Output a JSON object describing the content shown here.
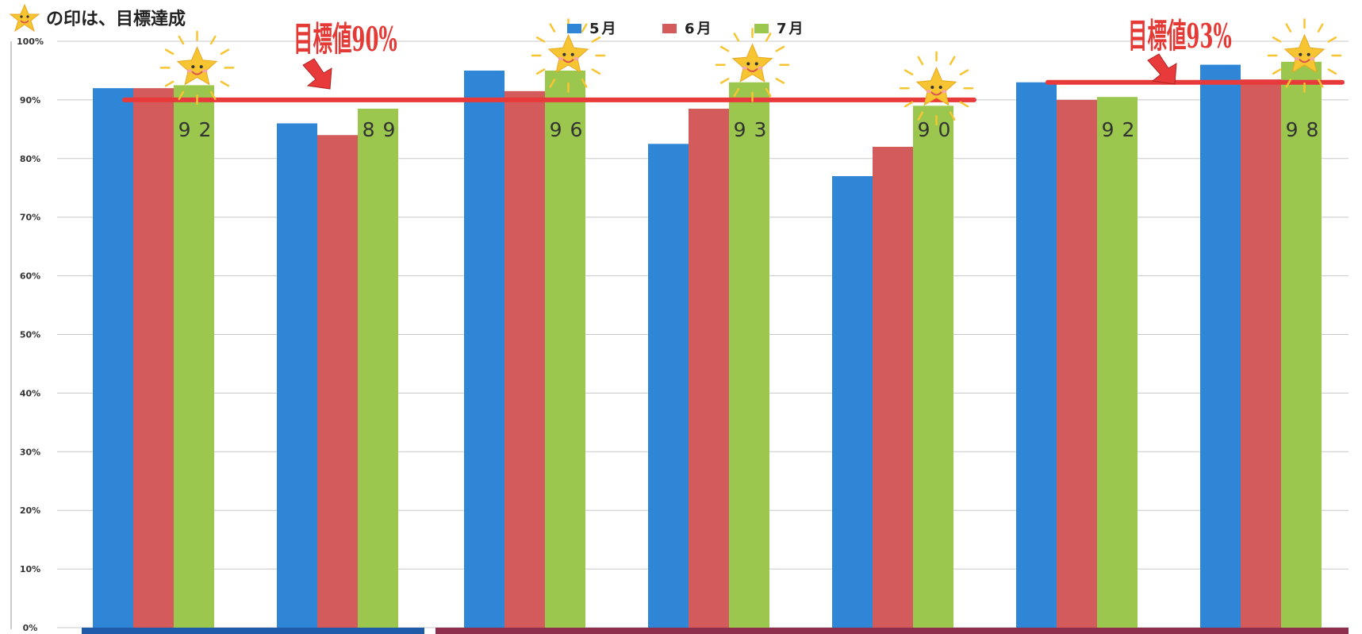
{
  "note": {
    "text": "の印は、目標達成",
    "icon": "smiling-star-icon"
  },
  "targets": [
    {
      "label": "目標値90%",
      "value": 90,
      "from_group": 0,
      "to_group": 4
    },
    {
      "label": "目標値93%",
      "value": 93,
      "from_group": 5,
      "to_group": 6
    }
  ],
  "colors": {
    "may": "#2F86D6",
    "june": "#D45B5B",
    "july": "#9CC74E",
    "target_line": "#E83A3A",
    "target_text": "#E53935",
    "star": "#F7C531",
    "grid": "#C8C8C8",
    "bottom_band_1": "#1F5BA8",
    "bottom_band_2": "#8E2F4E"
  },
  "chart_data": {
    "type": "bar",
    "categories": [
      "",
      "",
      "",
      "",
      "",
      "",
      ""
    ],
    "series": [
      {
        "name": "5月",
        "values": [
          92,
          86,
          95,
          82.5,
          77,
          93,
          96
        ]
      },
      {
        "name": "6月",
        "values": [
          92,
          84,
          91.5,
          88.5,
          82,
          90,
          93.5
        ]
      },
      {
        "name": "7月",
        "values": [
          92.5,
          88.5,
          95,
          93,
          89,
          90.5,
          96.5
        ]
      }
    ],
    "data_labels": [
      "92",
      "89",
      "96",
      "93",
      "90",
      "92",
      "98"
    ],
    "achieved": [
      true,
      false,
      true,
      true,
      true,
      false,
      true
    ],
    "yticks": [
      "0%",
      "10%",
      "20%",
      "30%",
      "40%",
      "50%",
      "60%",
      "70%",
      "80%",
      "90%",
      "100%"
    ],
    "ylim": [
      0,
      100
    ],
    "grid": true,
    "legend": "top-center",
    "title": "",
    "xlabel": "",
    "ylabel": ""
  }
}
